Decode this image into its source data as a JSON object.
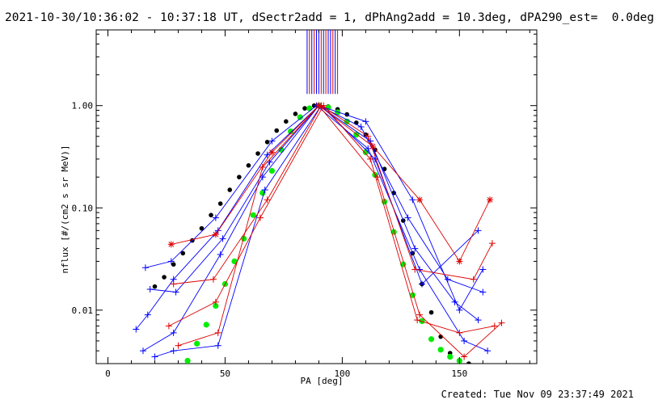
{
  "title": "2021-10-30/10:36:02 - 10:37:18 UT, dSectr2add = 1, dPhAng2add = 10.3deg, dPA290_est=  0.0deg",
  "created": "Created: Tue Nov 09 23:37:49 2021",
  "colors": {
    "axes": "#000000",
    "series_blue": "#0000ff",
    "series_red": "#dd0000",
    "fit_black": "#000000",
    "fit_green": "#00ee00"
  },
  "chart_data": {
    "type": "line",
    "xlabel": "PA [deg]",
    "ylabel": "nflux [#/(cm2 s sr MeV)]",
    "xlim": [
      -5,
      183
    ],
    "ylim": [
      0.003,
      5.5
    ],
    "yscale": "log",
    "x_ticks": [
      0,
      50,
      100,
      150
    ],
    "x_tick_labels": [
      "0",
      "50",
      "100",
      "150"
    ],
    "y_ticks": [
      0.01,
      0.1,
      1.0
    ],
    "y_tick_labels": [
      "0.01",
      "0.10",
      "1.00"
    ],
    "grid": false,
    "series": [
      {
        "color": "blue",
        "marker": "+",
        "x": [
          12,
          17,
          28,
          47,
          68,
          90,
          112,
          131,
          148,
          158
        ],
        "y": [
          0.0065,
          0.009,
          0.02,
          0.06,
          0.33,
          1.0,
          0.45,
          0.04,
          0.012,
          0.008
        ]
      },
      {
        "color": "blue",
        "marker": "+",
        "x": [
          15,
          28,
          48,
          66,
          90,
          108,
          128,
          145,
          160
        ],
        "y": [
          0.004,
          0.006,
          0.035,
          0.2,
          1.0,
          0.62,
          0.08,
          0.02,
          0.015
        ]
      },
      {
        "color": "blue",
        "marker": "+",
        "x": [
          16,
          27,
          46,
          70,
          89,
          111,
          133,
          152,
          162
        ],
        "y": [
          0.026,
          0.03,
          0.08,
          0.45,
          1.0,
          0.38,
          0.025,
          0.005,
          0.004
        ]
      },
      {
        "color": "blue",
        "marker": "+",
        "x": [
          20,
          28,
          47,
          67,
          91,
          114,
          134,
          158
        ],
        "y": [
          0.0035,
          0.004,
          0.0045,
          0.15,
          1.0,
          0.3,
          0.018,
          0.06
        ]
      },
      {
        "color": "blue",
        "marker": "+",
        "x": [
          18,
          29,
          49,
          69,
          90,
          110,
          130,
          150,
          160
        ],
        "y": [
          0.016,
          0.015,
          0.05,
          0.28,
          1.0,
          0.7,
          0.12,
          0.01,
          0.025
        ]
      },
      {
        "color": "red",
        "marker": "*",
        "x": [
          27,
          46,
          70,
          90,
          113,
          133,
          150,
          163
        ],
        "y": [
          0.044,
          0.055,
          0.35,
          1.0,
          0.4,
          0.12,
          0.03,
          0.12
        ]
      },
      {
        "color": "red",
        "marker": "+",
        "x": [
          26,
          46,
          65,
          92,
          112,
          132,
          150,
          165
        ],
        "y": [
          0.007,
          0.012,
          0.08,
          1.0,
          0.3,
          0.008,
          0.006,
          0.007
        ]
      },
      {
        "color": "red",
        "marker": "+",
        "x": [
          30,
          47,
          66,
          90,
          115,
          133,
          152,
          168
        ],
        "y": [
          0.0045,
          0.006,
          0.25,
          1.0,
          0.2,
          0.009,
          0.0035,
          0.0075
        ]
      },
      {
        "color": "red",
        "marker": "+",
        "x": [
          28,
          45,
          68,
          91,
          111,
          131,
          156,
          164
        ],
        "y": [
          0.018,
          0.02,
          0.12,
          1.0,
          0.5,
          0.025,
          0.02,
          0.045
        ]
      }
    ],
    "fits": [
      {
        "color": "black",
        "marker": "dot",
        "x": [
          20,
          24,
          28,
          32,
          36,
          40,
          44,
          48,
          52,
          56,
          60,
          64,
          68,
          72,
          76,
          80,
          84,
          88,
          90,
          94,
          98,
          102,
          106,
          110,
          114,
          118,
          122,
          126,
          130,
          134,
          138,
          142,
          146,
          150,
          154
        ],
        "y": [
          0.017,
          0.021,
          0.028,
          0.036,
          0.048,
          0.063,
          0.085,
          0.11,
          0.15,
          0.2,
          0.26,
          0.34,
          0.44,
          0.57,
          0.7,
          0.83,
          0.94,
          1.0,
          1.0,
          0.98,
          0.92,
          0.82,
          0.68,
          0.52,
          0.37,
          0.24,
          0.14,
          0.075,
          0.036,
          0.018,
          0.0095,
          0.0055,
          0.0038,
          0.0032,
          0.003
        ]
      },
      {
        "color": "green",
        "marker": "dot",
        "x": [
          34,
          38,
          42,
          46,
          50,
          54,
          58,
          62,
          66,
          70,
          74,
          78,
          82,
          86,
          90,
          94,
          98,
          102,
          106,
          110,
          114,
          118,
          122,
          126,
          130,
          134,
          138,
          142,
          146,
          150
        ],
        "y": [
          0.0032,
          0.0047,
          0.0072,
          0.011,
          0.018,
          0.03,
          0.05,
          0.085,
          0.14,
          0.23,
          0.37,
          0.56,
          0.77,
          0.94,
          1.0,
          0.96,
          0.86,
          0.7,
          0.52,
          0.35,
          0.21,
          0.115,
          0.058,
          0.028,
          0.014,
          0.0078,
          0.0052,
          0.0041,
          0.0035,
          0.0032
        ]
      }
    ],
    "top_bars": {
      "color_blue": "blue",
      "color_red": "red",
      "x": [
        85,
        86,
        87,
        88,
        89,
        90,
        91,
        92,
        93,
        94,
        95,
        96,
        97,
        98
      ],
      "colors": [
        "blue",
        "red",
        "blue",
        "red",
        "blue",
        "blue",
        "red",
        "blue",
        "red",
        "blue",
        "blue",
        "red",
        "blue",
        "red"
      ],
      "y_low": 1.3,
      "y_high": 5.5
    }
  }
}
